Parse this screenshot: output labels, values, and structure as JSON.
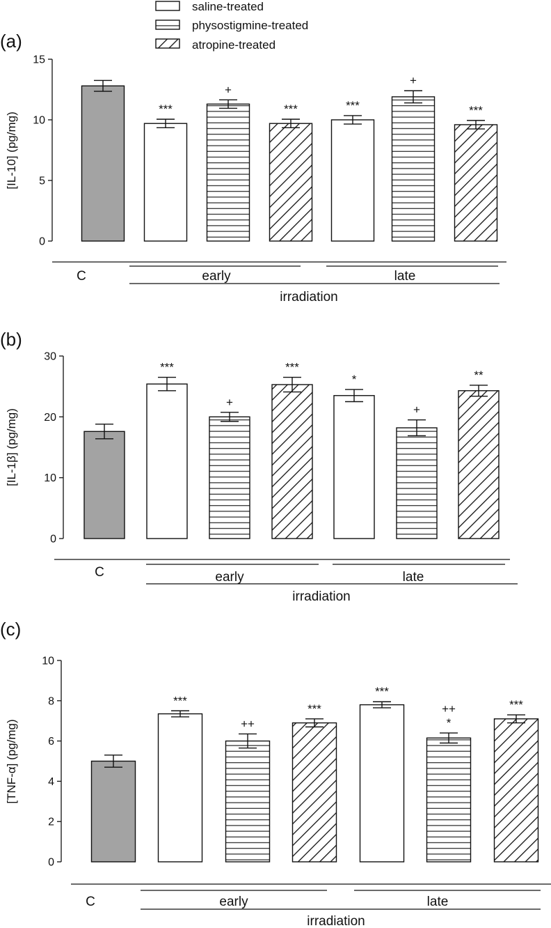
{
  "legend": [
    {
      "label": "saline-treated",
      "pattern": "open"
    },
    {
      "label": "physostigmine-treated",
      "pattern": "horizontal"
    },
    {
      "label": "atropine-treated",
      "pattern": "diagonal"
    }
  ],
  "groups": {
    "control": "C",
    "early": "early",
    "late": "late",
    "irradiation": "irradiation"
  },
  "colors": {
    "control_fill": "#a3a3a3",
    "stroke": "#111111",
    "open_fill": "#ffffff"
  },
  "chart_data": [
    {
      "type": "bar",
      "panel": "(a)",
      "ylabel": "[IL-10] (pg/mg)",
      "ylim": [
        0,
        15
      ],
      "yticks": [
        0,
        5,
        10,
        15
      ],
      "categories": [
        "C",
        "early saline-treated",
        "early physostigmine-treated",
        "early atropine-treated",
        "late saline-treated",
        "late physostigmine-treated",
        "late atropine-treated"
      ],
      "patterns": [
        "control",
        "open",
        "horizontal",
        "diagonal",
        "open",
        "horizontal",
        "diagonal"
      ],
      "values": [
        12.8,
        9.7,
        11.3,
        9.7,
        10.0,
        11.9,
        9.6
      ],
      "errors": [
        0.45,
        0.35,
        0.35,
        0.35,
        0.35,
        0.5,
        0.35
      ],
      "annotations": [
        [],
        [
          "***"
        ],
        [
          "+"
        ],
        [
          "***"
        ],
        [
          "***"
        ],
        [
          "+"
        ],
        [
          "***"
        ]
      ]
    },
    {
      "type": "bar",
      "panel": "(b)",
      "ylabel": "[IL-1β]  (pg/mg)",
      "ylim": [
        0,
        30
      ],
      "yticks": [
        0,
        10,
        20,
        30
      ],
      "categories": [
        "C",
        "early saline-treated",
        "early physostigmine-treated",
        "early atropine-treated",
        "late saline-treated",
        "late physostigmine-treated",
        "late atropine-treated"
      ],
      "patterns": [
        "control",
        "open",
        "horizontal",
        "diagonal",
        "open",
        "horizontal",
        "diagonal"
      ],
      "values": [
        17.6,
        25.4,
        20.0,
        25.3,
        23.5,
        18.2,
        24.3
      ],
      "errors": [
        1.2,
        1.1,
        0.75,
        1.2,
        1.0,
        1.3,
        0.9
      ],
      "annotations": [
        [],
        [
          "***"
        ],
        [
          "+"
        ],
        [
          "***"
        ],
        [
          "*"
        ],
        [
          "+"
        ],
        [
          "**"
        ]
      ]
    },
    {
      "type": "bar",
      "panel": "(c)",
      "ylabel": "[TNF-α] (pg/mg)",
      "ylim": [
        0,
        10
      ],
      "yticks": [
        0,
        2,
        4,
        6,
        8,
        10
      ],
      "categories": [
        "C",
        "early saline-treated",
        "early physostigmine-treated",
        "early atropine-treated",
        "late saline-treated",
        "late physostigmine-treated",
        "late atropine-treated"
      ],
      "patterns": [
        "control",
        "open",
        "horizontal",
        "diagonal",
        "open",
        "horizontal",
        "diagonal"
      ],
      "values": [
        5.0,
        7.35,
        6.0,
        6.9,
        7.8,
        6.15,
        7.1
      ],
      "errors": [
        0.3,
        0.15,
        0.35,
        0.2,
        0.15,
        0.25,
        0.2
      ],
      "annotations": [
        [],
        [
          "***"
        ],
        [
          "++"
        ],
        [
          "***"
        ],
        [
          "***"
        ],
        [
          "++",
          "*"
        ],
        [
          "***"
        ]
      ]
    }
  ]
}
